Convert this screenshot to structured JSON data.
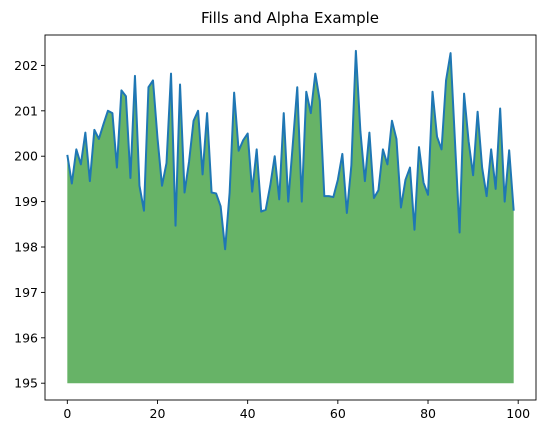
{
  "chart_data": {
    "type": "area",
    "title": "Fills and Alpha Example",
    "xlabel": "",
    "ylabel": "",
    "xlim": [
      -4.95,
      103.95
    ],
    "ylim": [
      194.63,
      202.67
    ],
    "x_ticks": [
      0,
      20,
      40,
      60,
      80,
      100
    ],
    "y_ticks": [
      195,
      196,
      197,
      198,
      199,
      200,
      201,
      202
    ],
    "grid": false,
    "fill_baseline": 195,
    "fill_color": "#4ca64c",
    "fill_alpha": 0.85,
    "line_color": "#1f77b4",
    "series": [
      {
        "x": [
          0,
          1,
          2,
          3,
          4,
          5,
          6,
          7,
          8,
          9,
          10,
          11,
          12,
          13,
          14,
          15,
          16,
          17,
          18,
          19,
          20,
          21,
          22,
          23,
          24,
          25,
          26,
          27,
          28,
          29,
          30,
          31,
          32,
          33,
          34,
          35,
          36,
          37,
          38,
          39,
          40,
          41,
          42,
          43,
          44,
          45,
          46,
          47,
          48,
          49,
          50,
          51,
          52,
          53,
          54,
          55,
          56,
          57,
          58,
          59,
          60,
          61,
          62,
          63,
          64,
          65,
          66,
          67,
          68,
          69,
          70,
          71,
          72,
          73,
          74,
          75,
          76,
          77,
          78,
          79,
          80,
          81,
          82,
          83,
          84,
          85,
          86,
          87,
          88,
          89,
          90,
          91,
          92,
          93,
          94,
          95,
          96,
          97,
          98,
          99
        ],
        "values": [
          200.03,
          199.4,
          200.15,
          199.82,
          200.52,
          199.45,
          200.58,
          200.38,
          200.7,
          201.0,
          200.95,
          199.75,
          201.45,
          201.32,
          199.52,
          201.77,
          199.35,
          198.8,
          201.52,
          201.67,
          200.4,
          199.35,
          199.85,
          201.82,
          198.47,
          201.58,
          199.2,
          199.88,
          200.78,
          201.0,
          199.6,
          200.95,
          199.2,
          199.18,
          198.9,
          197.95,
          199.2,
          201.4,
          200.12,
          200.35,
          200.5,
          199.22,
          200.15,
          198.78,
          198.82,
          199.35,
          200.0,
          199.05,
          200.95,
          199.0,
          200.25,
          201.52,
          199.0,
          201.42,
          200.95,
          201.82,
          201.22,
          199.12,
          199.12,
          199.1,
          199.48,
          200.05,
          198.75,
          199.8,
          202.32,
          200.55,
          199.45,
          200.52,
          199.08,
          199.25,
          200.15,
          199.82,
          200.78,
          200.38,
          198.87,
          199.48,
          199.75,
          198.38,
          200.2,
          199.42,
          199.15,
          201.42,
          200.43,
          200.15,
          201.67,
          202.27,
          200.28,
          198.32,
          201.38,
          200.33,
          199.58,
          200.98,
          199.75,
          199.12,
          200.15,
          199.28,
          201.05,
          199.0,
          200.13,
          198.8
        ]
      }
    ]
  }
}
